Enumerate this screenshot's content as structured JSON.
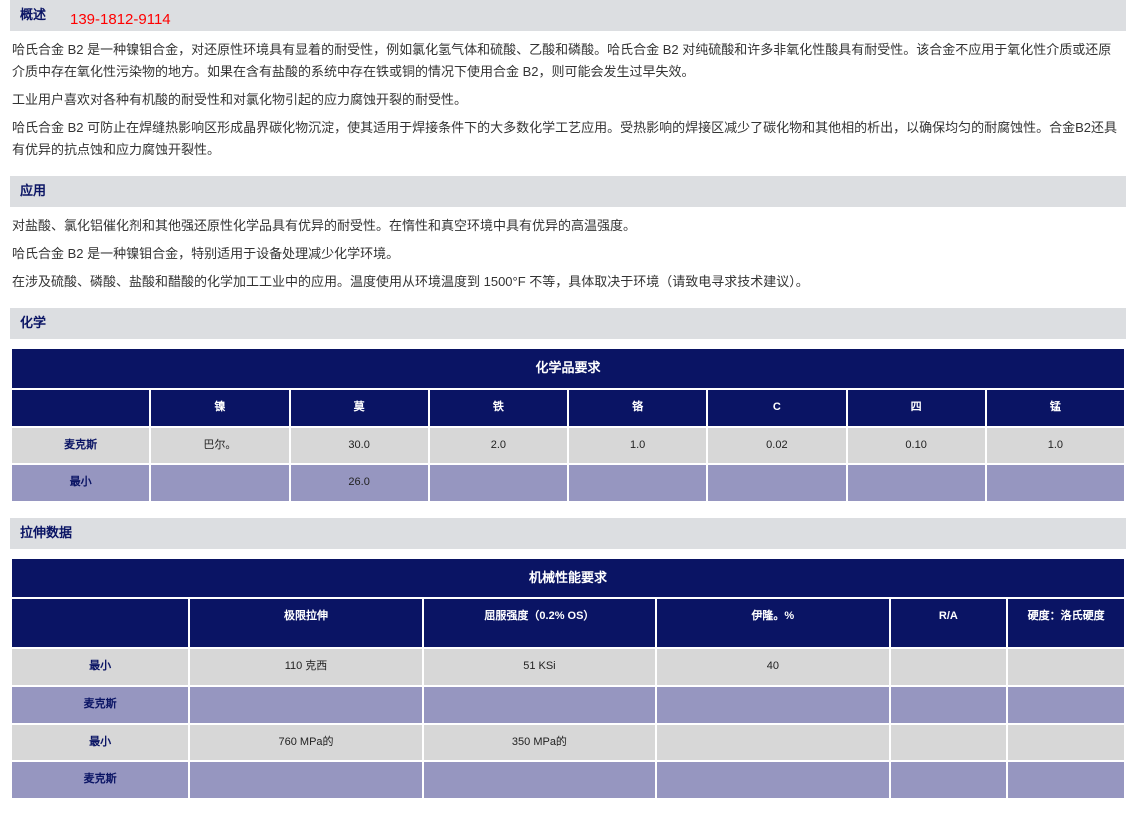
{
  "phone": "139-1812-9114",
  "sections": {
    "overview": {
      "title": "概述",
      "p1": "哈氏合金 B2 是一种镍钼合金，对还原性环境具有显着的耐受性，例如氯化氢气体和硫酸、乙酸和磷酸。哈氏合金 B2 对纯硫酸和许多非氧化性酸具有耐受性。该合金不应用于氧化性介质或还原介质中存在氧化性污染物的地方。如果在含有盐酸的系统中存在铁或铜的情况下使用合金 B2，则可能会发生过早失效。",
      "p2": "工业用户喜欢对各种有机酸的耐受性和对氯化物引起的应力腐蚀开裂的耐受性。",
      "p3": "哈氏合金 B2 可防止在焊缝热影响区形成晶界碳化物沉淀，使其适用于焊接条件下的大多数化学工艺应用。受热影响的焊接区减少了碳化物和其他相的析出，以确保均匀的耐腐蚀性。合金B2还具有优异的抗点蚀和应力腐蚀开裂性。"
    },
    "application": {
      "title": "应用",
      "p1": "对盐酸、氯化铝催化剂和其他强还原性化学品具有优异的耐受性。在惰性和真空环境中具有优异的高温强度。",
      "p2": "哈氏合金 B2 是一种镍钼合金，特别适用于设备处理减少化学环境。",
      "p3": "在涉及硫酸、磷酸、盐酸和醋酸的化学加工工业中的应用。温度使用从环境温度到 1500°F 不等，具体取决于环境（请致电寻求技术建议）。"
    },
    "chemistry": {
      "title": "化学",
      "table_title": "化学品要求",
      "row_labels": {
        "max": "麦克斯",
        "min": "最小"
      },
      "columns": [
        "镍",
        "莫",
        "铁",
        "铬",
        "C",
        "四",
        "锰"
      ],
      "row_max": [
        "巴尔。",
        "30.0",
        "2.0",
        "1.0",
        "0.02",
        "0.10",
        "1.0"
      ],
      "row_min": [
        "",
        "26.0",
        "",
        "",
        "",
        "",
        ""
      ]
    },
    "tensile": {
      "title": "拉伸数据",
      "table_title": "机械性能要求",
      "row_labels": {
        "max": "麦克斯",
        "min": "最小"
      },
      "columns": [
        "极限拉伸",
        "屈服强度（0.2% OS）",
        "伊隆。%",
        "R/A",
        "硬度：洛氏硬度"
      ],
      "row_min1": [
        "110 克西",
        "51 KSi",
        "40",
        "",
        ""
      ],
      "row_max1": [
        "",
        "",
        "",
        "",
        ""
      ],
      "row_min2": [
        "760 MPa的",
        "350 MPa的",
        "",
        "",
        ""
      ],
      "row_max2": [
        "",
        "",
        "",
        "",
        ""
      ]
    }
  },
  "colors": {
    "header_bg": "#dcdee1",
    "header_text": "#0a1464",
    "table_dark_bg": "#0a1464",
    "table_dark_text": "#ffffff",
    "row_purple": "#9696c0",
    "row_grey": "#d7d7d7",
    "phone_color": "#ff0000"
  }
}
